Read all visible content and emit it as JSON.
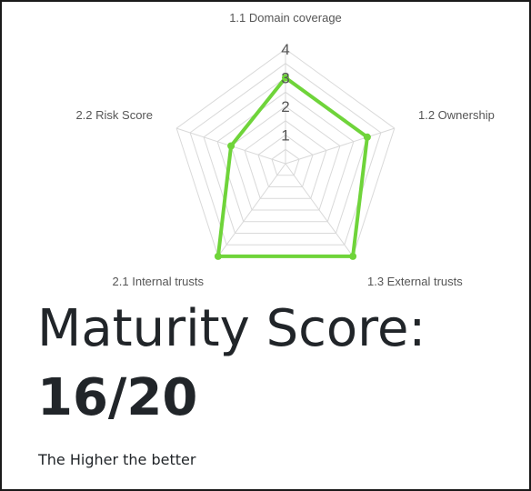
{
  "chart_data": {
    "type": "radar",
    "categories": [
      "1.1 Domain coverage",
      "1.2 Ownership",
      "1.3 External trusts",
      "2.1 Internal trusts",
      "2.2 Risk Score"
    ],
    "values": [
      3,
      3,
      4,
      4,
      2
    ],
    "rlim": [
      0,
      4
    ],
    "r_ticks": [
      "1",
      "2",
      "3",
      "4"
    ],
    "grid": true,
    "series_color": "#6fd43a",
    "grid_color": "#d9d9d9"
  },
  "score": {
    "title": "Maturity Score:",
    "value": "16/20",
    "note": "The Higher the better"
  }
}
